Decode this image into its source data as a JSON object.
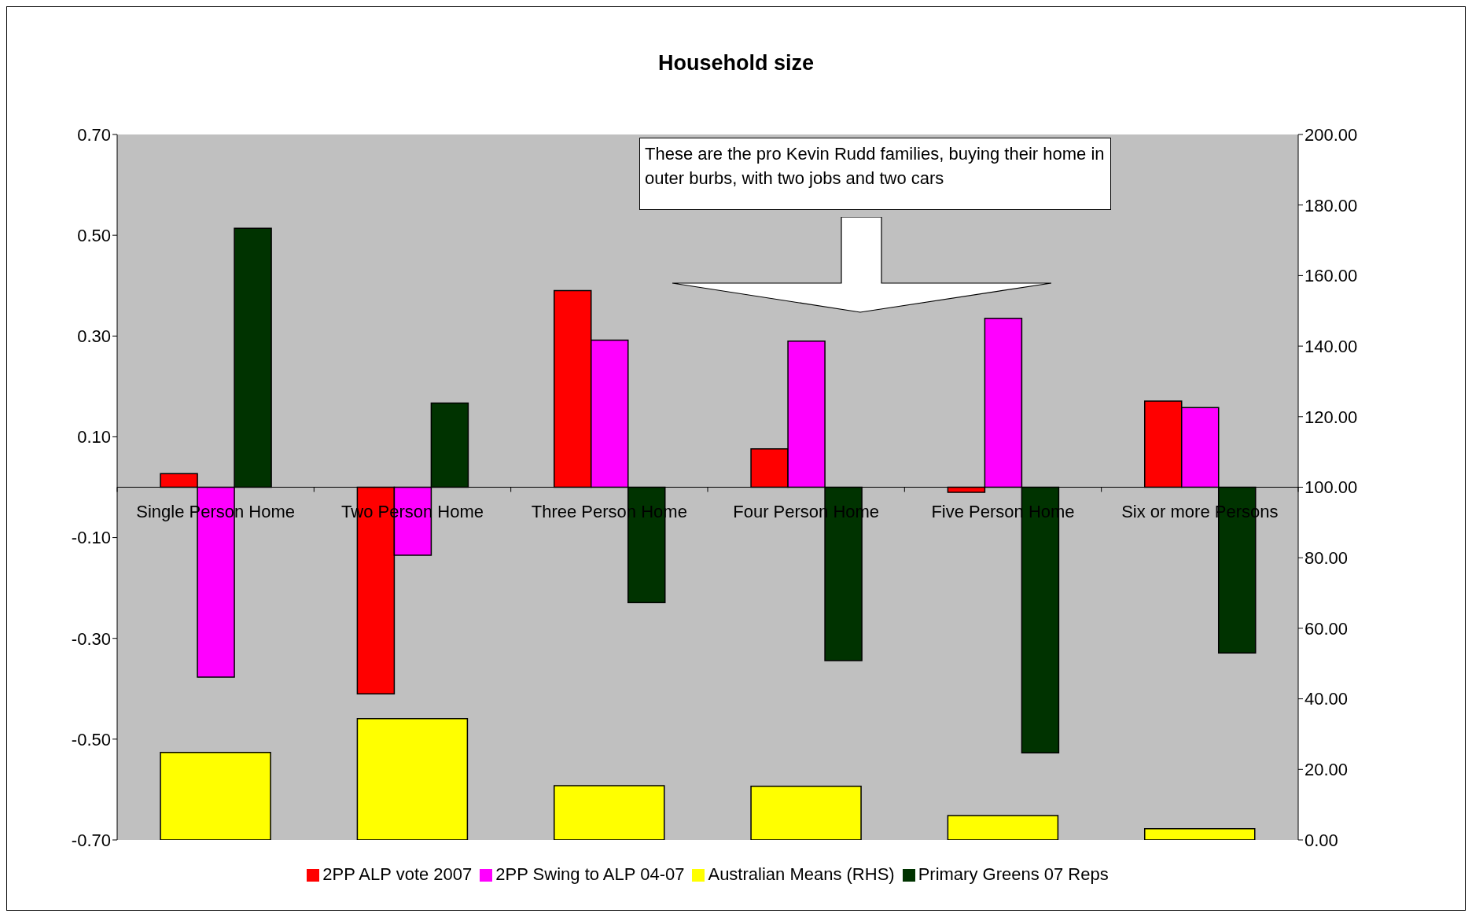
{
  "chart_data": {
    "type": "bar",
    "title": "Household size",
    "categories": [
      "Single Person Home",
      "Two Person Home",
      "Three Person Home",
      "Four Person Home",
      "Five Person Home",
      "Six or more Persons"
    ],
    "series": [
      {
        "name": "2PP ALP vote 2007",
        "color": "#ff0000",
        "values": [
          0.027,
          -0.41,
          0.39,
          0.076,
          -0.01,
          0.171
        ]
      },
      {
        "name": "2PP Swing to ALP 04-07",
        "color": "#ff00ff",
        "values": [
          -0.377,
          -0.135,
          0.292,
          0.29,
          0.335,
          0.158
        ]
      },
      {
        "name": "Primary Greens 07 Reps",
        "color": "#003300",
        "values": [
          0.514,
          0.167,
          -0.229,
          -0.344,
          -0.527,
          -0.329
        ]
      },
      {
        "name": "Australian Means (RHS)",
        "color": "#ffff00",
        "axis": "y2",
        "values": [
          24.8,
          34.4,
          15.4,
          15.2,
          6.9,
          3.2
        ]
      }
    ],
    "ylim": [
      -0.7,
      0.7
    ],
    "yticks": [
      {
        "value": -0.7,
        "label": "-0.70"
      },
      {
        "value": -0.5,
        "label": "-0.50"
      },
      {
        "value": -0.3,
        "label": "-0.30"
      },
      {
        "value": -0.1,
        "label": "-0.10"
      },
      {
        "value": 0.1,
        "label": "0.10"
      },
      {
        "value": 0.3,
        "label": "0.30"
      },
      {
        "value": 0.5,
        "label": "0.50"
      },
      {
        "value": 0.7,
        "label": "0.70"
      }
    ],
    "y2lim": [
      0,
      200
    ],
    "y2ticks": [
      {
        "value": 0,
        "label": "0.00"
      },
      {
        "value": 20,
        "label": "20.00"
      },
      {
        "value": 40,
        "label": "40.00"
      },
      {
        "value": 60,
        "label": "60.00"
      },
      {
        "value": 80,
        "label": "80.00"
      },
      {
        "value": 100,
        "label": "100.00"
      },
      {
        "value": 120,
        "label": "120.00"
      },
      {
        "value": 140,
        "label": "140.00"
      },
      {
        "value": 160,
        "label": "160.00"
      },
      {
        "value": 180,
        "label": "180.00"
      },
      {
        "value": 200,
        "label": "200.00"
      }
    ],
    "annotations": [
      "These are the pro Kevin Rudd families, buying their home in outer burbs, with two jobs and two cars"
    ],
    "legend": "bottom",
    "grid": false
  }
}
